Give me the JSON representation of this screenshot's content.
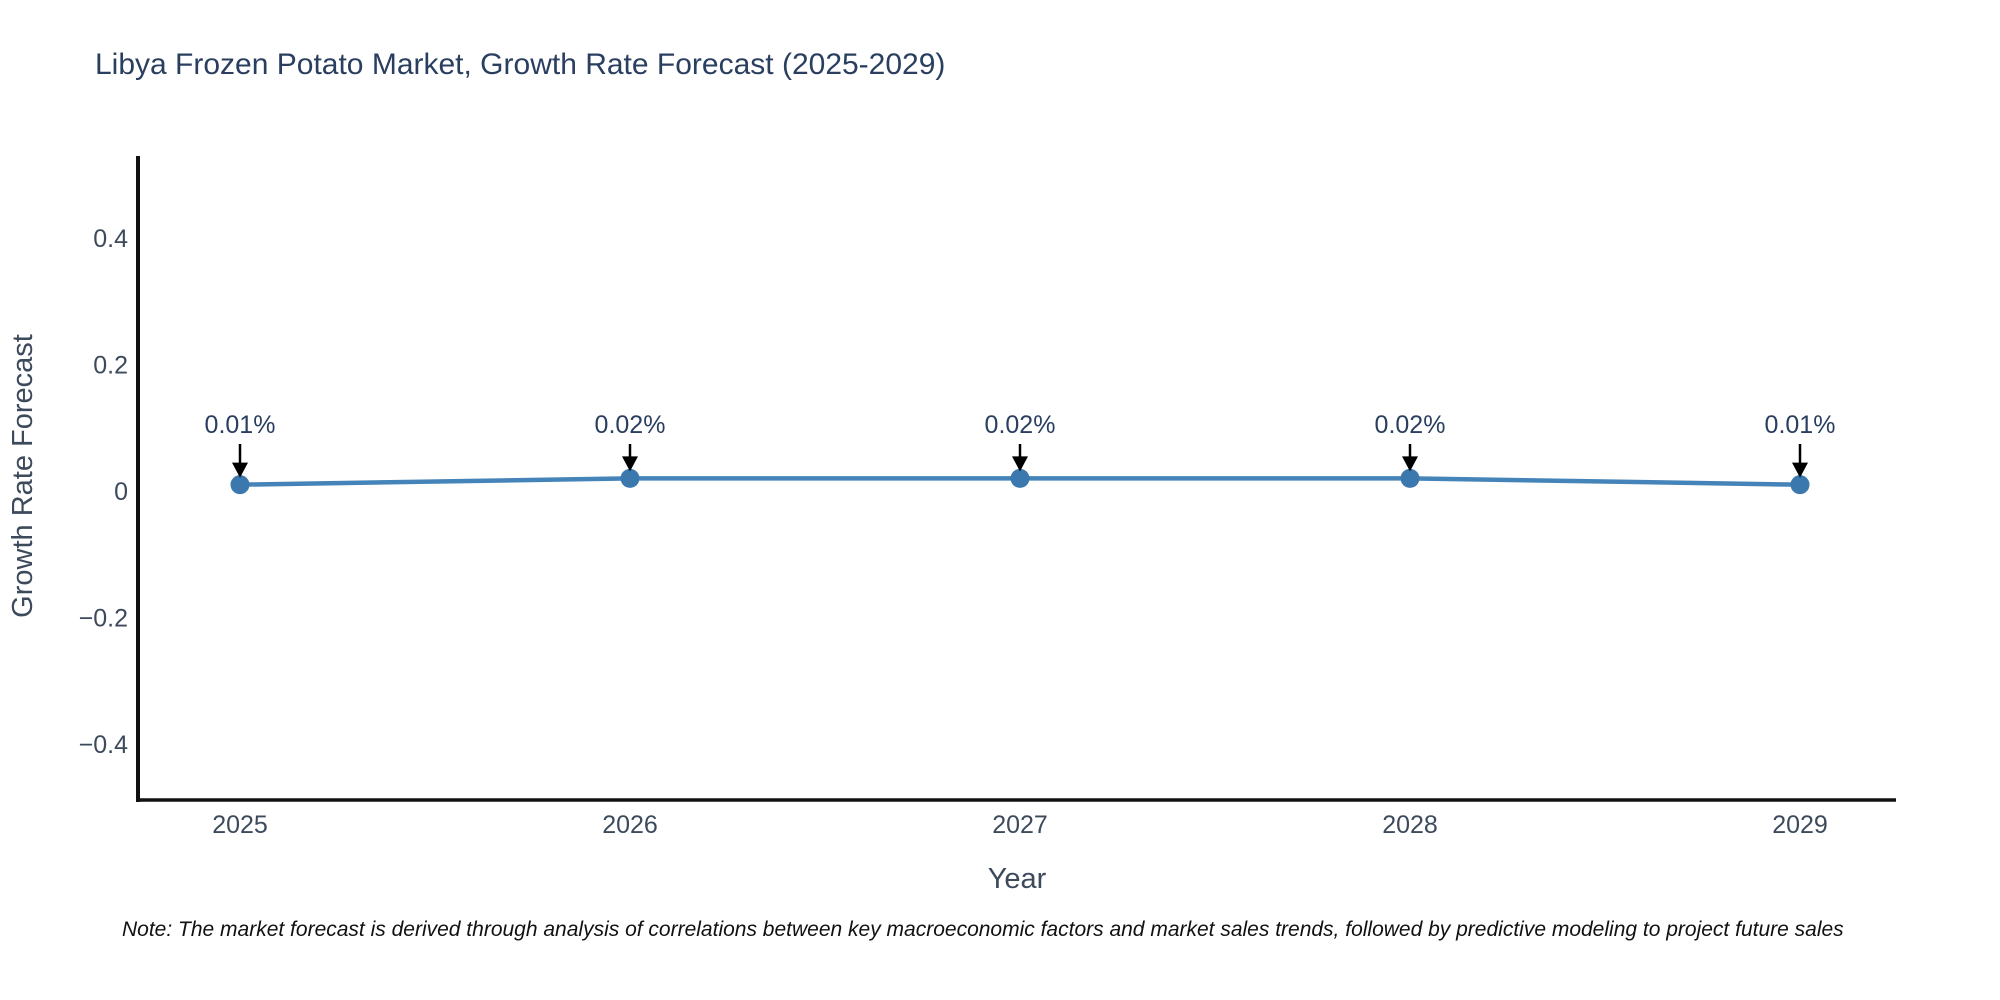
{
  "title": "Libya Frozen Potato Market, Growth Rate Forecast (2025-2029)",
  "note": "Note: The market forecast is derived through analysis of correlations between key macroeconomic factors and market sales trends, followed by predictive modeling to project future sales",
  "chart_data": {
    "type": "line",
    "title": "Libya Frozen Potato Market, Growth Rate Forecast (2025-2029)",
    "categories": [
      "2025",
      "2026",
      "2027",
      "2028",
      "2029"
    ],
    "values": [
      0.01,
      0.02,
      0.02,
      0.02,
      0.01
    ],
    "point_labels": [
      "0.01%",
      "0.02%",
      "0.02%",
      "0.02%",
      "0.01%"
    ],
    "xlabel": "Year",
    "ylabel": "Growth Rate Forecast",
    "ytick_values": [
      0.4,
      0.2,
      0,
      -0.2,
      -0.4
    ],
    "ytick_labels": [
      "0.4",
      "0.2",
      "0",
      "−0.2",
      "−0.4"
    ],
    "ylim": [
      -0.49,
      0.53
    ],
    "grid": false,
    "legend": "none",
    "colors": {
      "line": "#4484b8",
      "marker": "#3b78ae",
      "axis": "#111111",
      "tick_text": "#3d4a5c",
      "axis_title_text": "#3d4a5c",
      "annotation_text": "#2a3f5f",
      "annotation_arrow": "#000000",
      "title_text": "#2a3f5f",
      "background": "#ffffff"
    }
  }
}
